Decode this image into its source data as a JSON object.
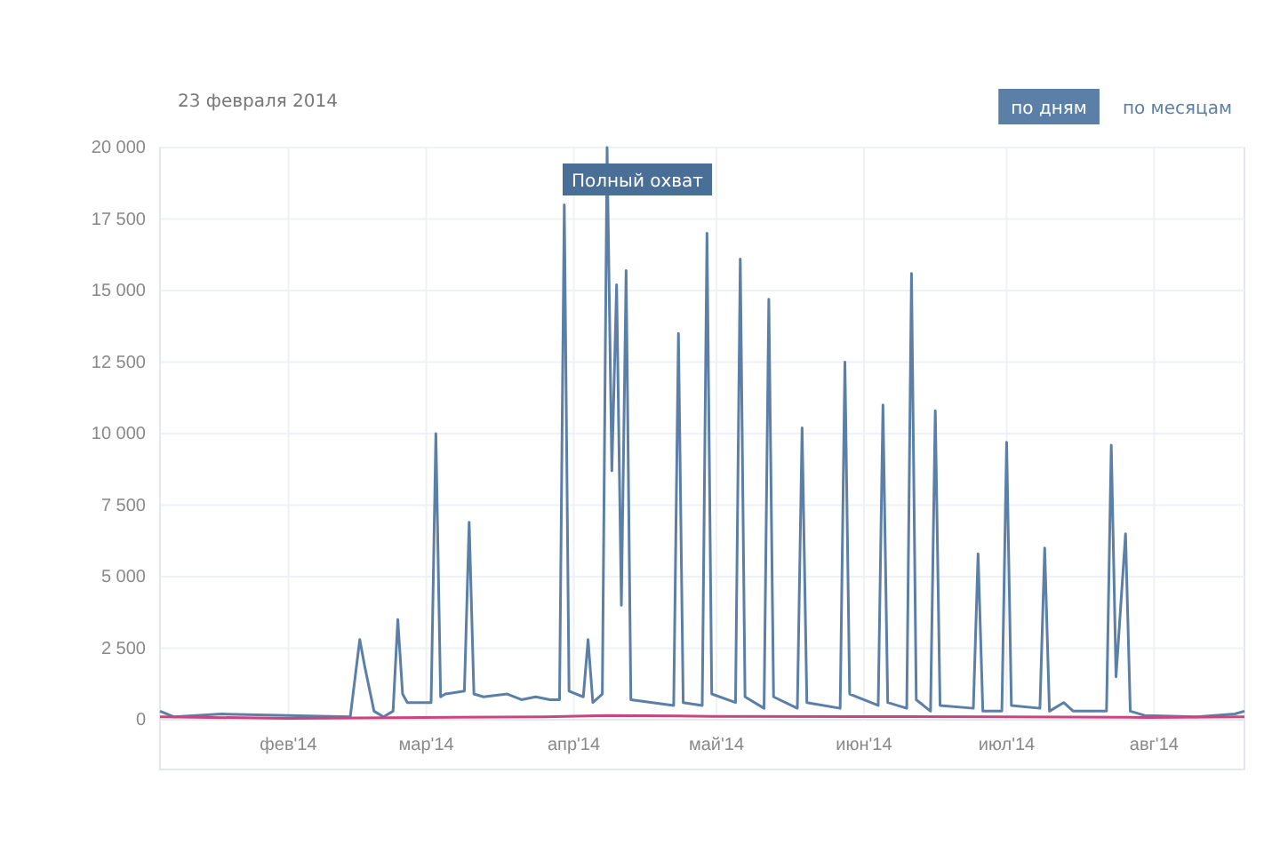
{
  "chart_data": {
    "type": "line",
    "subtitle": "23 февраля 2014",
    "annotations": [
      {
        "text": "Полный охват",
        "x": "2014-04-23",
        "y": 20000
      },
      "по дням",
      "по месяцам"
    ],
    "xlim": [
      "2014-01-19",
      "2014-09-04"
    ],
    "xticks": [
      {
        "value": "2014-02-15",
        "label": "фев'14"
      },
      {
        "value": "2014-03-16",
        "label": "мар'14"
      },
      {
        "value": "2014-04-16",
        "label": "апр'14"
      },
      {
        "value": "2014-05-16",
        "label": "май'14"
      },
      {
        "value": "2014-06-16",
        "label": "июн'14"
      },
      {
        "value": "2014-07-16",
        "label": "июл'14"
      },
      {
        "value": "2014-08-16",
        "label": "авг'14"
      }
    ],
    "ylim": [
      0,
      20000
    ],
    "yticks": [
      0,
      {
        "value": 2500,
        "label": "2 500"
      },
      {
        "value": 5000,
        "label": "5 000"
      },
      {
        "value": 7500,
        "label": "7 500"
      },
      {
        "value": 10000,
        "label": "10 000"
      },
      {
        "value": 12500,
        "label": "12 500"
      },
      {
        "value": 15000,
        "label": "15 000"
      },
      {
        "value": 17500,
        "label": "17 500"
      },
      {
        "value": 20000,
        "label": "20 000"
      }
    ],
    "grid": true,
    "marker": "none",
    "line_style": "solid",
    "series": [
      {
        "color": "#5b7fa6",
        "x": [
          "2014-01-19",
          "2014-01-22",
          "2014-02-01",
          "2014-02-15",
          "2014-02-28",
          "2014-03-02",
          "2014-03-03",
          "2014-03-05",
          "2014-03-07",
          "2014-03-09",
          "2014-03-10",
          "2014-03-11",
          "2014-03-12",
          "2014-03-17",
          "2014-03-18",
          "2014-03-19",
          "2014-03-20",
          "2014-03-24",
          "2014-03-25",
          "2014-03-26",
          "2014-03-28",
          "2014-04-02",
          "2014-04-05",
          "2014-04-08",
          "2014-04-11",
          "2014-04-13",
          "2014-04-14",
          "2014-04-15",
          "2014-04-18",
          "2014-04-19",
          "2014-04-20",
          "2014-04-22",
          "2014-04-23",
          "2014-04-24",
          "2014-04-25",
          "2014-04-26",
          "2014-04-27",
          "2014-04-28",
          "2014-05-07",
          "2014-05-08",
          "2014-05-09",
          "2014-05-13",
          "2014-05-14",
          "2014-05-15",
          "2014-05-20",
          "2014-05-21",
          "2014-05-22",
          "2014-05-26",
          "2014-05-27",
          "2014-05-28",
          "2014-06-02",
          "2014-06-03",
          "2014-06-04",
          "2014-06-11",
          "2014-06-12",
          "2014-06-13",
          "2014-06-19",
          "2014-06-20",
          "2014-06-21",
          "2014-06-25",
          "2014-06-26",
          "2014-06-27",
          "2014-06-30",
          "2014-07-01",
          "2014-07-02",
          "2014-07-09",
          "2014-07-10",
          "2014-07-11",
          "2014-07-15",
          "2014-07-16",
          "2014-07-17",
          "2014-07-23",
          "2014-07-24",
          "2014-07-25",
          "2014-07-28",
          "2014-07-30",
          "2014-08-06",
          "2014-08-07",
          "2014-08-08",
          "2014-08-10",
          "2014-08-11",
          "2014-08-14",
          "2014-08-25",
          "2014-09-02",
          "2014-09-04"
        ],
        "values": [
          300,
          100,
          200,
          150,
          100,
          2800,
          1900,
          300,
          100,
          300,
          3500,
          900,
          600,
          600,
          10000,
          800,
          900,
          1000,
          6900,
          900,
          800,
          900,
          700,
          800,
          700,
          700,
          18000,
          1000,
          800,
          2800,
          600,
          900,
          20000,
          8700,
          15200,
          4000,
          15700,
          700,
          500,
          13500,
          600,
          500,
          17000,
          900,
          600,
          16100,
          800,
          400,
          14700,
          800,
          400,
          10200,
          600,
          400,
          12500,
          900,
          500,
          11000,
          600,
          400,
          15600,
          700,
          300,
          10800,
          500,
          400,
          5800,
          300,
          300,
          9700,
          500,
          400,
          6000,
          300,
          600,
          300,
          300,
          9600,
          1500,
          6500,
          300,
          150,
          100,
          200,
          300
        ]
      },
      {
        "color": "#c8467f",
        "x": [
          "2014-01-19",
          "2014-02-15",
          "2014-03-15",
          "2014-04-10",
          "2014-04-23",
          "2014-05-15",
          "2014-06-15",
          "2014-07-15",
          "2014-08-15",
          "2014-09-04"
        ],
        "values": [
          100,
          50,
          80,
          100,
          150,
          120,
          110,
          100,
          80,
          100
        ]
      }
    ]
  }
}
